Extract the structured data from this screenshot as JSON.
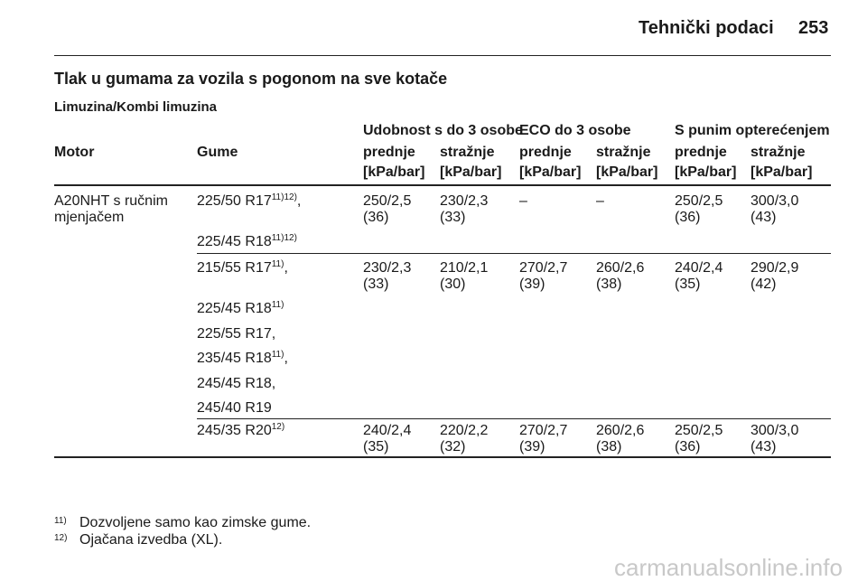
{
  "header": {
    "section": "Tehnički podaci",
    "page": "253"
  },
  "title": "Tlak u gumama za vozila s pogonom na sve kotače",
  "subtitle": "Limuzina/Kombi limuzina",
  "table": {
    "group_headers": [
      "Udobnost s do 3 osobe",
      "ECO do 3 osobe",
      "S punim opterećenjem"
    ],
    "columns": [
      "Motor",
      "Gume",
      "prednje",
      "stražnje",
      "prednje",
      "stražnje",
      "prednje",
      "stražnje"
    ],
    "units": [
      "[kPa/bar]",
      "[kPa/bar]",
      "[kPa/bar]",
      "[kPa/bar]",
      "[kPa/bar]",
      "[kPa/bar]"
    ],
    "rows": [
      {
        "motor": [
          "A20NHT s ručnim",
          "mjenjačem"
        ],
        "tyres": [
          {
            "size": "225/50 R17",
            "note": "11)12)",
            "punct": ","
          },
          {
            "size": "225/45 R18",
            "note": "11)12)"
          }
        ],
        "values": [
          [
            "250/2,5",
            "(36)"
          ],
          [
            "230/2,3",
            "(33)"
          ],
          [
            "–"
          ],
          [
            "–"
          ],
          [
            "250/2,5",
            "(36)"
          ],
          [
            "300/3,0",
            "(43)"
          ]
        ]
      },
      {
        "tyres": [
          {
            "size": "215/55 R17",
            "note": "11)",
            "punct": ","
          },
          {
            "size": "225/45 R18",
            "note": "11)"
          },
          {
            "size": "225/55 R17,"
          },
          {
            "size": "235/45 R18",
            "note": "11)",
            "punct": ","
          },
          {
            "size": "245/45 R18,"
          },
          {
            "size": "245/40 R19"
          }
        ],
        "values": [
          [
            "230/2,3",
            "(33)"
          ],
          [
            "210/2,1",
            "(30)"
          ],
          [
            "270/2,7",
            "(39)"
          ],
          [
            "260/2,6",
            "(38)"
          ],
          [
            "240/2,4",
            "(35)"
          ],
          [
            "290/2,9",
            "(42)"
          ]
        ]
      },
      {
        "tyres": [
          {
            "size": "245/35 R20",
            "note": "12)"
          }
        ],
        "values": [
          [
            "240/2,4",
            "(35)"
          ],
          [
            "220/2,2",
            "(32)"
          ],
          [
            "270/2,7",
            "(39)"
          ],
          [
            "260/2,6",
            "(38)"
          ],
          [
            "250/2,5",
            "(36)"
          ],
          [
            "300/3,0",
            "(43)"
          ]
        ]
      }
    ]
  },
  "footnotes": [
    {
      "mark": "11)",
      "text": "Dozvoljene samo kao zimske gume."
    },
    {
      "mark": "12)",
      "text": "Ojačana izvedba (XL)."
    }
  ],
  "watermark": "carmanualsonline.info"
}
